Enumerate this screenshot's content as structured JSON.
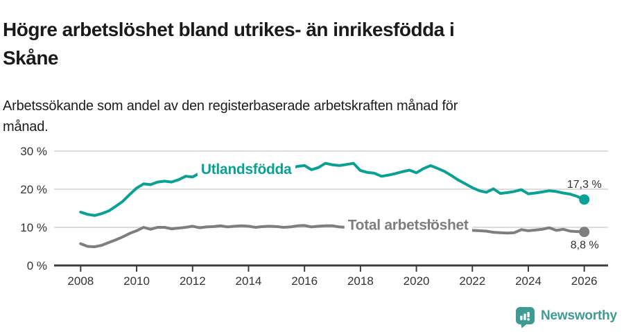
{
  "header": {
    "title": "Högre arbetslöshet bland utrikes- än inrikesfödda i\nSkåne",
    "subtitle": "Arbetssökande som andel av den registerbaserade arbetskraften månad för\nmånad."
  },
  "footer": {
    "brand": "Newsworthy",
    "brand_color": "#3e9b94"
  },
  "chart_data": {
    "type": "line",
    "title": "Högre arbetslöshet bland utrikes- än inrikesfödda i Skåne",
    "subtitle": "Arbetssökande som andel av den registerbaserade arbetskraften månad för månad.",
    "x_unit": "year (quarterly samples of monthly data)",
    "x_start": 2008.0,
    "x_step_years": 0.25,
    "xlim": [
      2007.05,
      2026.85
    ],
    "ylim": [
      0,
      30
    ],
    "ytick_values": [
      0,
      10,
      20,
      30
    ],
    "ytick_labels": [
      "0 %",
      "10 %",
      "20 %",
      "30 %"
    ],
    "xtick_values": [
      2008,
      2010,
      2012,
      2014,
      2016,
      2018,
      2020,
      2022,
      2024,
      2026
    ],
    "xtick_labels": [
      "2008",
      "2010",
      "2012",
      "2014",
      "2016",
      "2018",
      "2020",
      "2022",
      "2024",
      "2026"
    ],
    "grid_color": "#dcdcdc",
    "axis_color": "#3d3d3d",
    "tick_label_color": "#333333",
    "value_label_color": "#2f2f2f",
    "legend_position": "inline-labels",
    "series": [
      {
        "name": "Utlandsfödda",
        "color": "#0aa096",
        "end_value_label": "17,3 %",
        "end_label_position": "above",
        "name_label_at": {
          "x": 2012.3,
          "y": 24.0
        },
        "values": [
          14.0,
          13.4,
          13.1,
          13.6,
          14.3,
          15.5,
          16.8,
          18.6,
          20.3,
          21.4,
          21.2,
          21.9,
          22.1,
          21.9,
          22.5,
          23.4,
          23.2,
          24.2,
          23.9,
          24.0,
          24.1,
          24.3,
          24.2,
          24.4,
          24.5,
          24.4,
          24.6,
          24.8,
          24.9,
          25.1,
          25.4,
          26.0,
          26.2,
          25.1,
          25.7,
          26.8,
          26.4,
          26.2,
          26.5,
          26.8,
          24.9,
          24.4,
          24.2,
          23.4,
          23.7,
          24.1,
          24.6,
          25.0,
          24.3,
          25.4,
          26.2,
          25.5,
          24.7,
          23.6,
          22.4,
          21.4,
          20.4,
          19.6,
          19.2,
          20.1,
          18.9,
          19.1,
          19.4,
          19.9,
          18.8,
          19.0,
          19.3,
          19.6,
          19.4,
          19.0,
          18.7,
          18.1,
          17.3
        ]
      },
      {
        "name": "Total arbetslöshet",
        "color": "#7e7e7e",
        "end_value_label": "8,8 %",
        "end_label_position": "below",
        "name_label_at": {
          "x": 2017.55,
          "y": 9.4
        },
        "values": [
          5.7,
          5.0,
          4.9,
          5.3,
          6.0,
          6.7,
          7.5,
          8.4,
          9.1,
          10.0,
          9.5,
          10.0,
          10.0,
          9.6,
          9.8,
          10.0,
          10.3,
          9.9,
          10.1,
          10.2,
          10.4,
          10.1,
          10.3,
          10.4,
          10.3,
          10.0,
          10.2,
          10.3,
          10.2,
          10.0,
          10.1,
          10.4,
          10.5,
          10.1,
          10.3,
          10.4,
          10.4,
          10.1,
          10.0,
          10.1,
          10.0,
          9.8,
          9.7,
          9.8,
          9.7,
          9.6,
          9.7,
          9.9,
          10.1,
          10.8,
          11.0,
          10.6,
          10.2,
          9.8,
          9.5,
          9.3,
          9.2,
          9.1,
          9.0,
          8.7,
          8.6,
          8.5,
          8.6,
          9.4,
          9.1,
          9.3,
          9.5,
          9.9,
          9.2,
          9.5,
          9.0,
          8.9,
          8.8
        ]
      }
    ]
  }
}
